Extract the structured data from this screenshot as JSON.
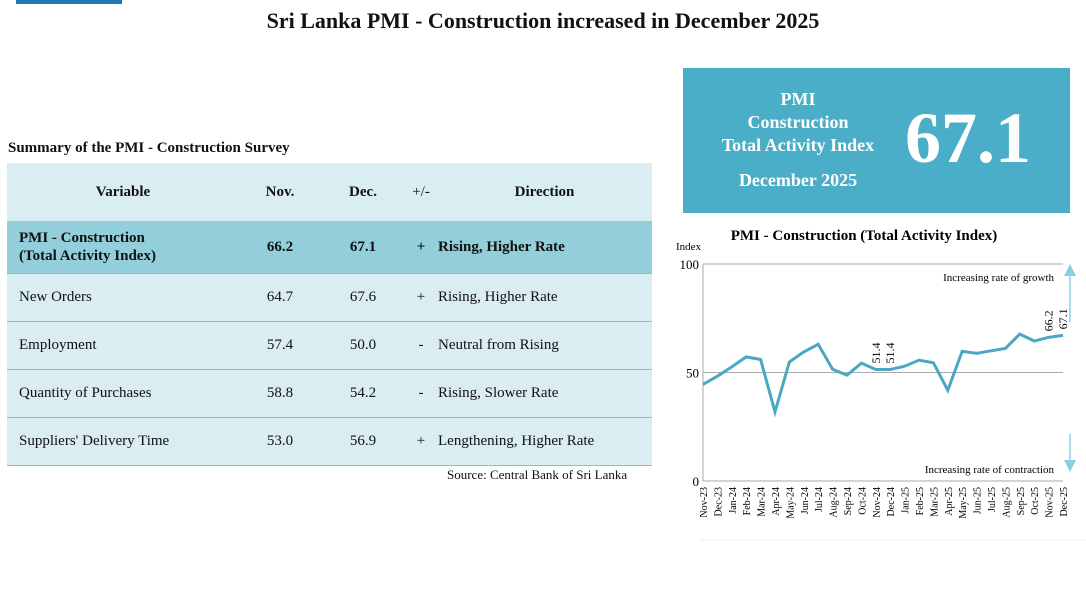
{
  "title": "Sri Lanka PMI - Construction increased in December 2025",
  "summary": {
    "title": "Summary of the PMI - Construction Survey",
    "headers": [
      "Variable",
      "Nov.",
      "Dec.",
      "+/-",
      "Direction"
    ],
    "rows": [
      {
        "variable": "PMI - Construction",
        "variable2": "(Total Activity Index)",
        "nov": "66.2",
        "dec": "67.1",
        "sign": "+",
        "direction": "Rising, Higher Rate"
      },
      {
        "variable": "New Orders",
        "nov": "64.7",
        "dec": "67.6",
        "sign": "+",
        "direction": "Rising, Higher Rate"
      },
      {
        "variable": "Employment",
        "nov": "57.4",
        "dec": "50.0",
        "sign": "-",
        "direction": "Neutral from Rising"
      },
      {
        "variable": "Quantity of Purchases",
        "nov": "58.8",
        "dec": "54.2",
        "sign": "-",
        "direction": "Rising, Slower Rate"
      },
      {
        "variable": "Suppliers' Delivery Time",
        "nov": "53.0",
        "dec": "56.9",
        "sign": "+",
        "direction": "Lengthening, Higher Rate"
      }
    ],
    "source": "Source: Central Bank of Sri Lanka"
  },
  "kpi": {
    "line1": "PMI",
    "line2": "Construction",
    "line3": "Total Activity Index",
    "date": "December 2025",
    "value": "67.1",
    "color": "#4baec8"
  },
  "chart_data": {
    "type": "line",
    "title": "PMI - Construction (Total Activity Index)",
    "ylabel": "Index",
    "ylim": [
      0,
      100
    ],
    "yticks": [
      "0",
      "50",
      "100"
    ],
    "grid": true,
    "color": "#4aa8c4",
    "categories": [
      "Nov-23",
      "Dec-23",
      "Jan-24",
      "Feb-24",
      "Mar-24",
      "Apr-24",
      "May-24",
      "Jun-24",
      "Jul-24",
      "Aug-24",
      "Sep-24",
      "Oct-24",
      "Nov-24",
      "Dec-24",
      "Jan-25",
      "Feb-25",
      "Mar-25",
      "Apr-25",
      "May-25",
      "Jun-25",
      "Jul-25",
      "Aug-25",
      "Sep-25",
      "Oct-25",
      "Nov-25",
      "Dec-25"
    ],
    "values": [
      44.5,
      48.3,
      52.6,
      57.2,
      56.0,
      31.8,
      54.9,
      59.5,
      63.0,
      51.5,
      48.8,
      54.3,
      51.4,
      51.4,
      52.9,
      55.7,
      54.5,
      41.8,
      59.8,
      58.8,
      60.0,
      61.1,
      67.7,
      64.5,
      66.2,
      67.1
    ],
    "data_labels": {
      "12": "51.4",
      "13": "51.4",
      "24": "66.2",
      "25": "67.1"
    },
    "annotations": [
      "Increasing rate of growth",
      "Increasing rate of contraction"
    ]
  }
}
